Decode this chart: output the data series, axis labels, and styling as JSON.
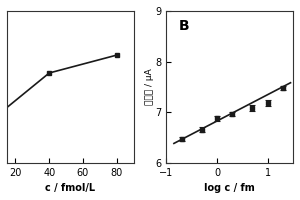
{
  "left": {
    "x": [
      10,
      40,
      80
    ],
    "y": [
      8.05,
      8.35,
      8.48
    ],
    "yerr": [
      0.0,
      0.0,
      0.0
    ],
    "xlabel": "c / fmol/L",
    "xticks": [
      20,
      40,
      60,
      80
    ],
    "xlim": [
      15,
      90
    ],
    "ylim": [
      7.7,
      8.8
    ],
    "yticks": []
  },
  "right": {
    "x": [
      -0.7,
      -0.3,
      0.0,
      0.3,
      0.7,
      1.0,
      1.3
    ],
    "y": [
      6.47,
      6.65,
      6.88,
      6.97,
      7.08,
      7.18,
      7.48
    ],
    "yerr": [
      0.04,
      0.05,
      0.05,
      0.04,
      0.06,
      0.05,
      0.04
    ],
    "fit_x": [
      -0.85,
      1.45
    ],
    "fit_y": [
      6.38,
      7.58
    ],
    "xlabel": "log c / fm",
    "ylabel": "光电流 / μA",
    "xticks": [
      -1,
      0,
      1
    ],
    "xlim": [
      -1.0,
      1.5
    ],
    "ylim": [
      6.0,
      9.0
    ],
    "yticks": [
      6,
      7,
      8,
      9
    ],
    "label": "B"
  },
  "bg_color": "#ffffff",
  "line_color": "#1a1a1a",
  "marker": "s",
  "markersize": 3.5,
  "linewidth": 1.2
}
